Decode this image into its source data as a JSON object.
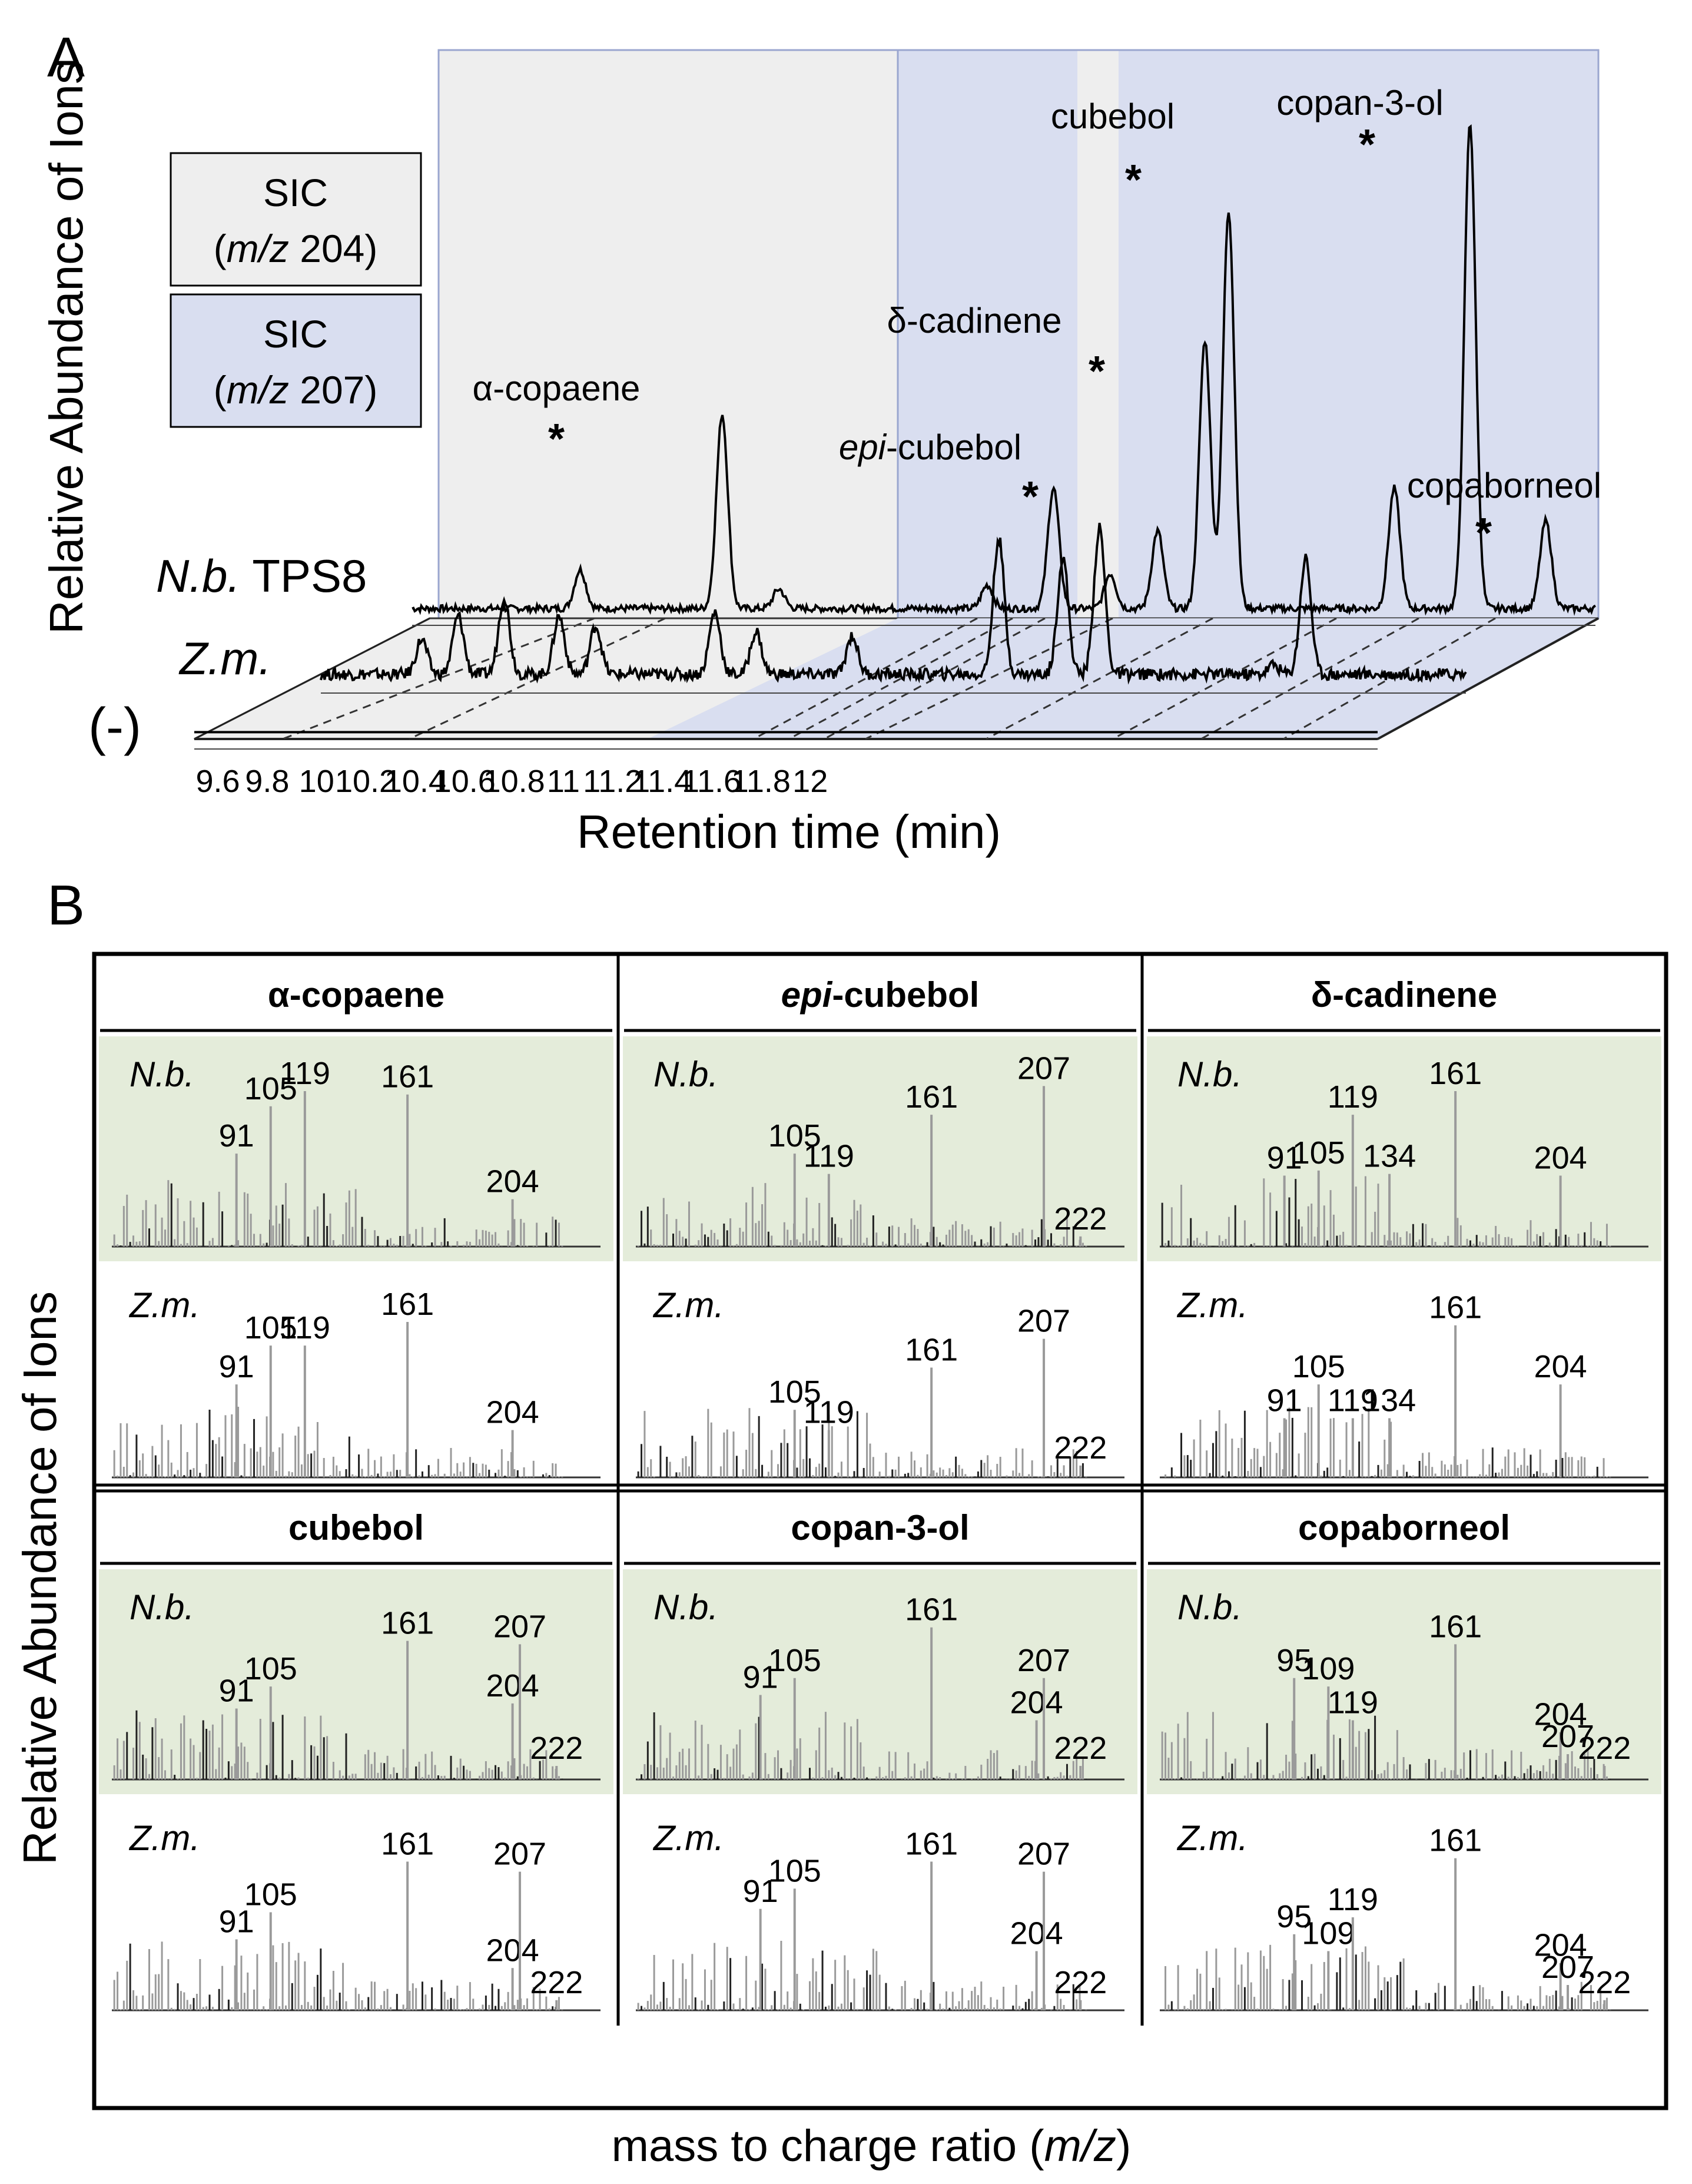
{
  "figure": {
    "panel_a_label": "A",
    "panel_b_label": "B",
    "colors": {
      "sic204_bg": "#eeeeee",
      "sic207_bg": "#d9def0",
      "nb_bg": "#e4ecda",
      "trace": "#000000",
      "spectrum_line": "#9a9a9a",
      "spectrum_dark": "#222222"
    }
  },
  "chart_data": [
    {
      "type": "line",
      "panel": "A",
      "title": "",
      "xlabel": "Retention time (min)",
      "ylabel": "Relative Abundance of Ions",
      "x_ticks": [
        "9.6",
        "9.8",
        "10",
        "10.2",
        "10.4",
        "10.6",
        "10.8",
        "11",
        "11.2",
        "11.4",
        "11.6",
        "11.8",
        "12"
      ],
      "xlim": [
        9.6,
        12.0
      ],
      "legend": [
        {
          "line1": "SIC",
          "line2_italic": "m/z",
          "line2_rest": " 204)",
          "line2_open": "(",
          "color": "#eeeeee"
        },
        {
          "line1": "SIC",
          "line2_italic": "m/z",
          "line2_rest": " 207)",
          "line2_open": "(",
          "color": "#d9def0"
        }
      ],
      "traces": [
        {
          "name_italic": "N.b.",
          "name_rest": " TPS8",
          "peaks": [
            [
              10.0,
              0.2
            ],
            [
              10.3,
              1.0
            ],
            [
              10.42,
              0.1
            ],
            [
              10.86,
              0.12
            ],
            [
              11.0,
              0.62
            ],
            [
              11.12,
              0.18
            ],
            [
              11.22,
              0.4
            ],
            [
              11.32,
              1.38
            ],
            [
              11.37,
              2.05
            ],
            [
              11.72,
              0.62
            ],
            [
              11.88,
              2.5
            ],
            [
              12.04,
              0.45
            ]
          ]
        },
        {
          "name_italic": "Z.m.",
          "name_rest": "",
          "peaks": [
            [
              9.82,
              0.18
            ],
            [
              9.9,
              0.3
            ],
            [
              10.0,
              0.4
            ],
            [
              10.12,
              0.3
            ],
            [
              10.2,
              0.25
            ],
            [
              10.46,
              0.32
            ],
            [
              10.55,
              0.22
            ],
            [
              10.76,
              0.2
            ],
            [
              11.08,
              0.7
            ],
            [
              11.22,
              0.6
            ],
            [
              11.3,
              0.75
            ],
            [
              11.68,
              0.05
            ],
            [
              11.75,
              0.6
            ]
          ]
        },
        {
          "name_italic": "",
          "name_rest": "(-)",
          "peaks": []
        }
      ],
      "annotations": [
        {
          "label": "α-copaene",
          "marker": "*",
          "x": 10.3
        },
        {
          "label_italic": "epi",
          "label_rest": "-cubebol",
          "marker": "*",
          "x": 11.32
        },
        {
          "label": "δ-cadinene",
          "marker": "*",
          "x": 11.37
        },
        {
          "label": "cubebol",
          "marker": "*",
          "x": 11.41
        },
        {
          "label": "copan-3-ol",
          "marker": "*",
          "x": 11.88
        },
        {
          "label": "copaborneol",
          "marker": "*",
          "x": 12.04
        }
      ]
    },
    {
      "type": "bar",
      "panel": "B",
      "xlabel_pre": "mass to charge ratio (",
      "xlabel_italic": "m/z",
      "xlabel_post": ")",
      "ylabel": "Relative Abundance of Ions",
      "compounds": [
        {
          "title": "α-copaene",
          "nb": [
            [
              91,
              0.55
            ],
            [
              105,
              0.83
            ],
            [
              119,
              0.92
            ],
            [
              161,
              0.9
            ],
            [
              204,
              0.28
            ]
          ],
          "zm": [
            [
              91,
              0.55
            ],
            [
              105,
              0.78
            ],
            [
              119,
              0.78
            ],
            [
              161,
              0.92
            ],
            [
              204,
              0.28
            ]
          ]
        },
        {
          "title_italic": "epi",
          "title_rest": "-cubebol",
          "nb": [
            [
              105,
              0.55
            ],
            [
              119,
              0.43
            ],
            [
              161,
              0.78
            ],
            [
              207,
              0.95
            ],
            [
              222,
              0.06
            ]
          ],
          "zm": [
            [
              105,
              0.4
            ],
            [
              119,
              0.28
            ],
            [
              161,
              0.65
            ],
            [
              207,
              0.82
            ],
            [
              222,
              0.07
            ]
          ]
        },
        {
          "title": "δ-cadinene",
          "nb": [
            [
              91,
              0.42
            ],
            [
              105,
              0.45
            ],
            [
              119,
              0.78
            ],
            [
              134,
              0.43
            ],
            [
              161,
              0.92
            ],
            [
              204,
              0.42
            ]
          ],
          "zm": [
            [
              91,
              0.35
            ],
            [
              105,
              0.55
            ],
            [
              119,
              0.35
            ],
            [
              134,
              0.35
            ],
            [
              161,
              0.9
            ],
            [
              204,
              0.55
            ]
          ]
        },
        {
          "title": "cubebol",
          "nb": [
            [
              91,
              0.42
            ],
            [
              105,
              0.55
            ],
            [
              161,
              0.82
            ],
            [
              204,
              0.45
            ],
            [
              207,
              0.8
            ],
            [
              222,
              0.08
            ]
          ],
          "zm": [
            [
              91,
              0.42
            ],
            [
              105,
              0.58
            ],
            [
              161,
              0.88
            ],
            [
              204,
              0.25
            ],
            [
              207,
              0.82
            ],
            [
              222,
              0.06
            ]
          ]
        },
        {
          "title": "copan-3-ol",
          "nb": [
            [
              91,
              0.5
            ],
            [
              105,
              0.6
            ],
            [
              161,
              0.9
            ],
            [
              204,
              0.35
            ],
            [
              207,
              0.6
            ],
            [
              222,
              0.08
            ]
          ],
          "zm": [
            [
              91,
              0.6
            ],
            [
              105,
              0.72
            ],
            [
              161,
              0.88
            ],
            [
              204,
              0.35
            ],
            [
              207,
              0.82
            ],
            [
              222,
              0.06
            ]
          ]
        },
        {
          "title": "copaborneol",
          "nb": [
            [
              95,
              0.6
            ],
            [
              109,
              0.55
            ],
            [
              119,
              0.35
            ],
            [
              161,
              0.8
            ],
            [
              204,
              0.28
            ],
            [
              207,
              0.15
            ],
            [
              222,
              0.08
            ]
          ],
          "zm": [
            [
              95,
              0.45
            ],
            [
              109,
              0.35
            ],
            [
              119,
              0.55
            ],
            [
              161,
              0.9
            ],
            [
              204,
              0.28
            ],
            [
              207,
              0.15
            ],
            [
              222,
              0.06
            ]
          ]
        }
      ],
      "row_labels": {
        "nb": "N.b.",
        "zm": "Z.m."
      }
    }
  ]
}
